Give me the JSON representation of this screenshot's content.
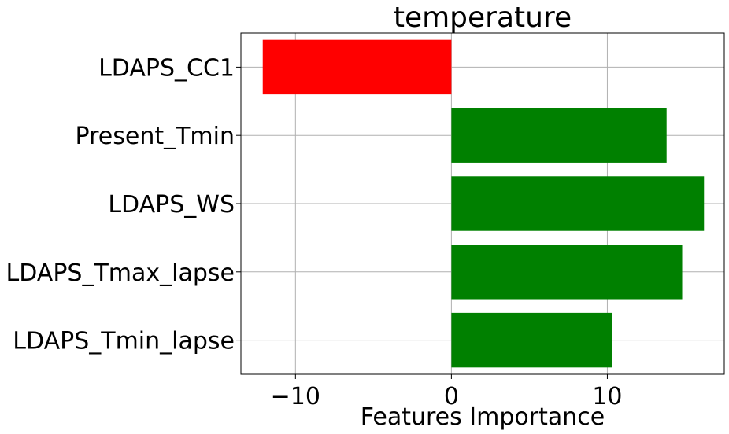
{
  "chart_data": {
    "type": "bar",
    "orientation": "horizontal",
    "title": "temperature",
    "xlabel": "Features Importance",
    "ylabel": "",
    "categories": [
      "LDAPS_CC1",
      "Present_Tmin",
      "LDAPS_WS",
      "LDAPS_Tmax_lapse",
      "LDAPS_Tmin_lapse"
    ],
    "values": [
      -12.1,
      13.8,
      16.2,
      14.8,
      10.3
    ],
    "xlim": [
      -13.5,
      17.5
    ],
    "xticks": [
      -10,
      0,
      10
    ],
    "xtick_labels": [
      "−10",
      "0",
      "10"
    ],
    "grid": true,
    "colors": {
      "negative": "#ff0000",
      "positive": "#008000",
      "grid": "#b0b0b0"
    }
  }
}
